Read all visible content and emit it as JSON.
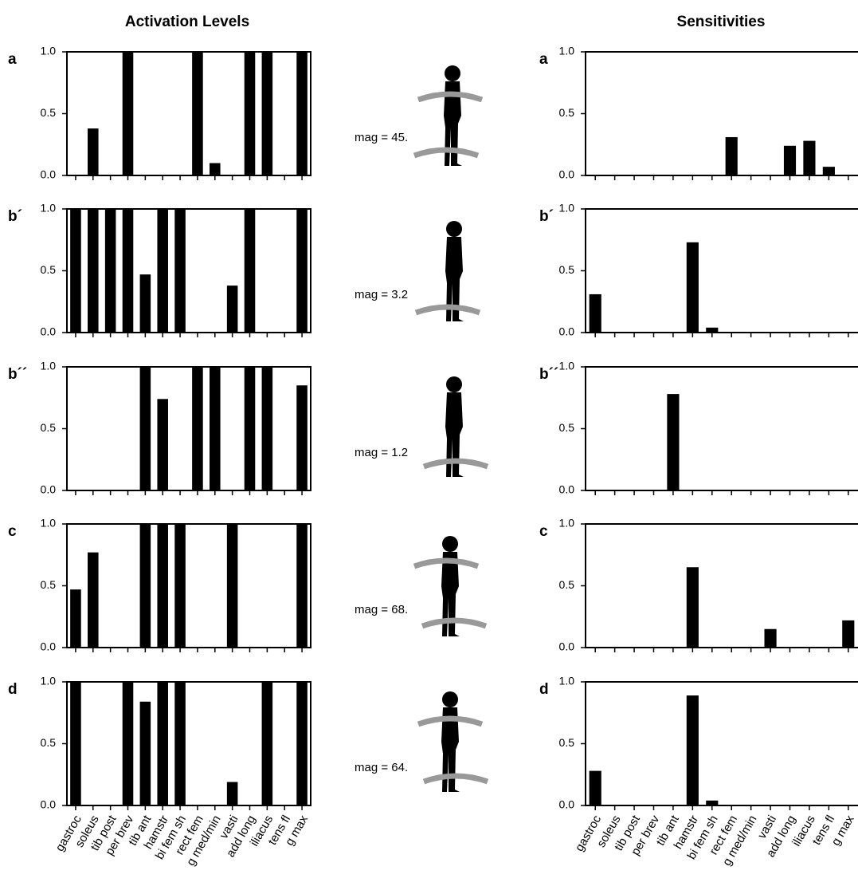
{
  "headers": [
    "Activation Levels",
    "Sensitivities"
  ],
  "chart_data": [
    {
      "type": "bar",
      "label": "a",
      "annotation": "mag = 45.",
      "color": "#000000",
      "values": [
        0,
        0.38,
        0,
        1,
        0,
        0,
        0,
        1,
        0.1,
        0,
        1,
        1,
        0,
        1
      ],
      "ylim": [
        0,
        1
      ],
      "yticks": [
        {
          "value": 0,
          "label": "0.0"
        },
        {
          "value": 0.5,
          "label": "0.5"
        },
        {
          "value": 1,
          "label": "1.0"
        }
      ]
    },
    {
      "type": "bar",
      "label": "b´",
      "annotation": "mag = 3.2",
      "color": "#000000",
      "values": [
        1,
        1,
        1,
        1,
        0.47,
        1,
        1,
        0,
        0,
        0.38,
        1,
        0,
        0,
        1
      ],
      "ylim": [
        0,
        1
      ],
      "yticks": [
        {
          "value": 0,
          "label": "0.0"
        },
        {
          "value": 0.5,
          "label": "0.5"
        },
        {
          "value": 1,
          "label": "1.0"
        }
      ]
    },
    {
      "type": "bar",
      "label": "b´´",
      "annotation": "mag = 1.2",
      "color": "#000000",
      "values": [
        0,
        0,
        0,
        0,
        1,
        0.74,
        0,
        1,
        1,
        0,
        1,
        1,
        0,
        0.85
      ],
      "ylim": [
        0,
        1
      ],
      "yticks": [
        {
          "value": 0,
          "label": "0.0"
        },
        {
          "value": 0.5,
          "label": "0.5"
        },
        {
          "value": 1,
          "label": "1.0"
        }
      ]
    },
    {
      "type": "bar",
      "label": "c",
      "annotation": "mag = 68.",
      "color": "#000000",
      "values": [
        0.47,
        0.77,
        0,
        0,
        1,
        1,
        1,
        0,
        0,
        1,
        0,
        0,
        0,
        1
      ],
      "ylim": [
        0,
        1
      ],
      "yticks": [
        {
          "value": 0,
          "label": "0.0"
        },
        {
          "value": 0.5,
          "label": "0.5"
        },
        {
          "value": 1,
          "label": "1.0"
        }
      ]
    },
    {
      "type": "bar",
      "label": "d",
      "annotation": "mag = 64.",
      "color": "#000000",
      "values": [
        1,
        0,
        0,
        1,
        0.84,
        1,
        1,
        0,
        0,
        0.19,
        0,
        1,
        0,
        1
      ],
      "ylim": [
        0,
        1
      ],
      "yticks": [
        {
          "value": 0,
          "label": "0.0"
        },
        {
          "value": 0.5,
          "label": "0.5"
        },
        {
          "value": 1,
          "label": "1.0"
        }
      ],
      "categories": [
        "gastroc",
        "soleus",
        "tib post",
        "per brev",
        "tib ant",
        "hamstr",
        "bi fem sh",
        "rect fem",
        "g med/min",
        "vasti",
        "add long",
        "iliacus",
        "tens fl",
        "g max"
      ]
    },
    {
      "type": "bar",
      "label": "a",
      "color": "#000000",
      "values": [
        0,
        0,
        0,
        0,
        0,
        0,
        0,
        0.31,
        0,
        0,
        0.24,
        0.28,
        0.07,
        0
      ],
      "ylim": [
        0,
        1
      ],
      "yticks": [
        {
          "value": 0,
          "label": "0.0"
        },
        {
          "value": 0.5,
          "label": "0.5"
        },
        {
          "value": 1,
          "label": "1.0"
        }
      ]
    },
    {
      "type": "bar",
      "label": "b´",
      "color": "#000000",
      "values": [
        0.31,
        0,
        0,
        0,
        0,
        0.73,
        0.04,
        0,
        0,
        0,
        0,
        0,
        0,
        0
      ],
      "ylim": [
        0,
        1
      ],
      "yticks": [
        {
          "value": 0,
          "label": "0.0"
        },
        {
          "value": 0.5,
          "label": "0.5"
        },
        {
          "value": 1,
          "label": "1.0"
        }
      ]
    },
    {
      "type": "bar",
      "label": "b´´",
      "color": "#000000",
      "values": [
        0,
        0,
        0,
        0,
        0.78,
        0,
        0,
        0,
        0,
        0,
        0,
        0,
        0,
        0
      ],
      "ylim": [
        0,
        1
      ],
      "yticks": [
        {
          "value": 0,
          "label": "0.0"
        },
        {
          "value": 0.5,
          "label": "0.5"
        },
        {
          "value": 1,
          "label": "1.0"
        }
      ]
    },
    {
      "type": "bar",
      "label": "c",
      "color": "#000000",
      "values": [
        0,
        0,
        0,
        0,
        0,
        0.65,
        0,
        0,
        0,
        0.15,
        0,
        0,
        0,
        0.22
      ],
      "ylim": [
        0,
        1
      ],
      "yticks": [
        {
          "value": 0,
          "label": "0.0"
        },
        {
          "value": 0.5,
          "label": "0.5"
        },
        {
          "value": 1,
          "label": "1.0"
        }
      ]
    },
    {
      "type": "bar",
      "label": "d",
      "color": "#000000",
      "values": [
        0.28,
        0,
        0,
        0,
        0,
        0.89,
        0.04,
        0,
        0,
        0,
        0,
        0,
        0,
        0
      ],
      "ylim": [
        0,
        1
      ],
      "yticks": [
        {
          "value": 0,
          "label": "0.0"
        },
        {
          "value": 0.5,
          "label": "0.5"
        },
        {
          "value": 1,
          "label": "1.0"
        }
      ],
      "categories": [
        "gastroc",
        "soleus",
        "tib post",
        "per brev",
        "tib ant",
        "hamstr",
        "bi fem sh",
        "rect fem",
        "g med/min",
        "vasti",
        "add long",
        "iliacus",
        "tens fl",
        "g max"
      ]
    }
  ]
}
